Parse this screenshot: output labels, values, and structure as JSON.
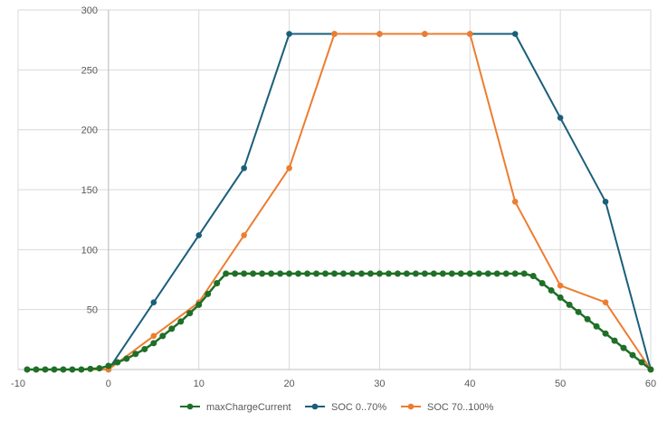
{
  "chart_data": {
    "type": "line",
    "title": "",
    "xlabel": "",
    "ylabel": "",
    "xlim": [
      -10,
      60
    ],
    "ylim": [
      0,
      300
    ],
    "x_ticks": [
      "-10",
      "0",
      "10",
      "20",
      "30",
      "40",
      "50",
      "60"
    ],
    "y_ticks": [
      "50",
      "100",
      "150",
      "200",
      "250",
      "300"
    ],
    "grid": true,
    "legend_position": "bottom",
    "series": [
      {
        "name": "maxChargeCurrent",
        "color": "#1f6f27",
        "x": [
          -9,
          -8,
          -7,
          -6,
          -5,
          -4,
          -3,
          -2,
          -1,
          0,
          1,
          2,
          3,
          4,
          5,
          6,
          7,
          8,
          9,
          10,
          11,
          12,
          13,
          14,
          15,
          16,
          17,
          18,
          19,
          20,
          21,
          22,
          23,
          24,
          25,
          26,
          27,
          28,
          29,
          30,
          31,
          32,
          33,
          34,
          35,
          36,
          37,
          38,
          39,
          40,
          41,
          42,
          43,
          44,
          45,
          46,
          47,
          48,
          49,
          50,
          51,
          52,
          53,
          54,
          55,
          56,
          57,
          58,
          59,
          60
        ],
        "y": [
          0,
          0,
          0,
          0,
          0,
          0,
          0,
          0.5,
          1,
          3,
          6,
          9,
          13,
          17,
          22,
          28,
          34,
          40,
          47,
          54,
          63,
          72,
          80,
          80,
          80,
          80,
          80,
          80,
          80,
          80,
          80,
          80,
          80,
          80,
          80,
          80,
          80,
          80,
          80,
          80,
          80,
          80,
          80,
          80,
          80,
          80,
          80,
          80,
          80,
          80,
          80,
          80,
          80,
          80,
          80,
          80,
          78,
          72,
          66,
          60,
          54,
          48,
          42,
          36,
          30,
          24,
          18,
          12,
          6,
          0
        ]
      },
      {
        "name": "SOC 0..70%",
        "color": "#1a5f7a",
        "x": [
          0,
          5,
          10,
          15,
          20,
          25,
          30,
          35,
          40,
          45,
          50,
          55,
          60
        ],
        "y": [
          0,
          56,
          112,
          168,
          280,
          280,
          280,
          280,
          280,
          280,
          210,
          140,
          0
        ]
      },
      {
        "name": "SOC 70..100%",
        "color": "#ed7d31",
        "x": [
          -5,
          0,
          5,
          10,
          15,
          20,
          25,
          30,
          35,
          40,
          45,
          50,
          55,
          60
        ],
        "y": [
          0,
          0,
          28,
          56,
          112,
          168,
          280,
          280,
          280,
          280,
          140,
          70,
          56,
          0
        ]
      }
    ]
  }
}
